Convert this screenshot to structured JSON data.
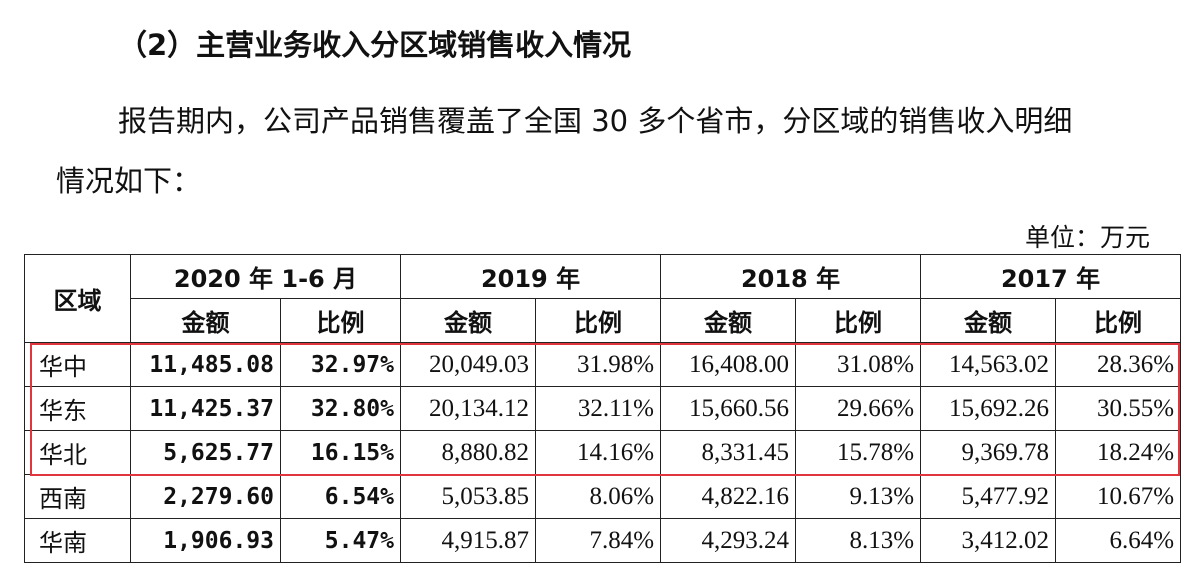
{
  "heading": "（2）主营业务收入分区域销售收入情况",
  "paragraph_line1": "报告期内，公司产品销售覆盖了全国 30 多个省市，分区域的销售收入明细",
  "paragraph_line2": "情况如下：",
  "unit": "单位：万元",
  "table": {
    "region_header": "区域",
    "periods": [
      "2020 年 1-6 月",
      "2019 年",
      "2018 年",
      "2017 年"
    ],
    "amount_label": "金额",
    "ratio_label": "比例",
    "rows": [
      {
        "region": "华中",
        "values": [
          "11,485.08",
          "32.97%",
          "20,049.03",
          "31.98%",
          "16,408.00",
          "31.08%",
          "14,563.02",
          "28.36%"
        ]
      },
      {
        "region": "华东",
        "values": [
          "11,425.37",
          "32.80%",
          "20,134.12",
          "32.11%",
          "15,660.56",
          "29.66%",
          "15,692.26",
          "30.55%"
        ]
      },
      {
        "region": "华北",
        "values": [
          "5,625.77",
          "16.15%",
          "8,880.82",
          "14.16%",
          "8,331.45",
          "15.78%",
          "9,369.78",
          "18.24%"
        ]
      },
      {
        "region": "西南",
        "values": [
          "2,279.60",
          "6.54%",
          "5,053.85",
          "8.06%",
          "4,822.16",
          "9.13%",
          "5,477.92",
          "10.67%"
        ]
      },
      {
        "region": "华南",
        "values": [
          "1,906.93",
          "5.47%",
          "4,915.87",
          "7.84%",
          "4,293.24",
          "8.13%",
          "3,412.02",
          "6.64%"
        ]
      }
    ]
  },
  "highlight_color": "#e0353d"
}
